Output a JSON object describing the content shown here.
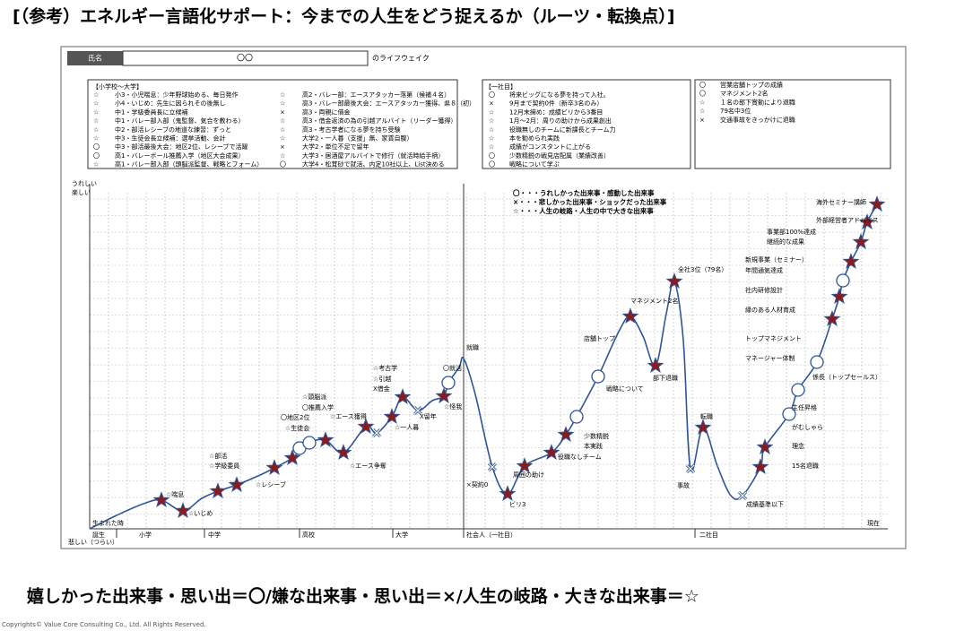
{
  "title": "[（参考）エネルギー言語化サポート：今までの人生をどう捉えるか（ルーツ・転換点）]",
  "name_row": {
    "label": "氏名",
    "value": "〇〇",
    "suffix": "のライフウェイク"
  },
  "boxes": [
    {
      "header": "【小学校～大学】",
      "items": [
        {
          "mark": "☆",
          "text": "小3・小児喘息：少年野球始める、毎日発作"
        },
        {
          "mark": "☆",
          "text": "小4・いじめ：先生に因られその後無し"
        },
        {
          "mark": "☆",
          "text": "中1・学級委員長に立候補"
        },
        {
          "mark": "☆",
          "text": "中1・バレー部入部（鬼監督、気合を教わる）"
        },
        {
          "mark": "☆",
          "text": "中2・部活レシーブの地道な練習：ずっと"
        },
        {
          "mark": "☆",
          "text": "中3・生徒会長立候補：選挙活動、会計"
        },
        {
          "mark": "〇",
          "text": "中3・部活最後大会：地区2位、レシーブで活躍"
        },
        {
          "mark": "〇",
          "text": "高1・バレーボール推薦入学（地区大会成果）"
        },
        {
          "mark": "☆",
          "text": "高1・バレー部入部（頭脳派監督、戦略とフォーム）"
        },
        {
          "mark": "☆",
          "text": "高2・バレー部：エースアタッカー落第（候補４名）"
        },
        {
          "mark": "☆",
          "text": "高3・バレー部最後大会：エースアタッカー獲得、県８（初）"
        },
        {
          "mark": "×",
          "text": "高3・両親に借金"
        },
        {
          "mark": "☆",
          "text": "高3・借金返済の為の引越アルバイト（リーダー獲得）"
        },
        {
          "mark": "☆",
          "text": "高3・考古学者になる夢を持ち受験"
        },
        {
          "mark": "☆",
          "text": "大学2・一人暮（支援」無、家賃自腹）"
        },
        {
          "mark": "×",
          "text": "大学2・単位不足で留年"
        },
        {
          "mark": "☆",
          "text": "大学3・居酒屋アルバイトで修行（就活時給手柄）"
        },
        {
          "mark": "〇",
          "text": "大学4・松茸砂で就活、内定10社以上、List決める"
        }
      ]
    },
    {
      "header": "【一社目】",
      "items": [
        {
          "mark": "〇",
          "text": "将来ビッグになる夢を持って入社。"
        },
        {
          "mark": "×",
          "text": "9月まで契約0件（新卒3名のみ）"
        },
        {
          "mark": "☆",
          "text": "12月末締め：成績ビリから3番目"
        },
        {
          "mark": "☆",
          "text": "1月～2月：周りの助けから成果創出"
        },
        {
          "mark": "☆",
          "text": "役職無しのチームに新課長とチーム力"
        },
        {
          "mark": "☆",
          "text": "本を勧められ実践"
        },
        {
          "mark": "☆",
          "text": "成績がコンスタントに上がる"
        },
        {
          "mark": "〇",
          "text": "少数精鋭の戦見店配属（業績改善）"
        },
        {
          "mark": "〇",
          "text": "戦略について学ぶ"
        }
      ]
    },
    {
      "items": [
        {
          "mark": "〇",
          "text": "営業店舗トップの成績"
        },
        {
          "mark": "〇",
          "text": "マネジメント2名"
        },
        {
          "mark": "☆",
          "text": "１名の部下賞勤により退職"
        },
        {
          "mark": "☆",
          "text": "79名中3位"
        },
        {
          "mark": "×",
          "text": "交通事故をきっかけに退職"
        }
      ]
    }
  ],
  "lifeline": {
    "y_top_label": [
      "うれしい",
      "楽しい"
    ],
    "y_bottom_label": "悲しい（つらい）",
    "birth_note": "生まれた時",
    "x_labels": [
      "誕生",
      "小学",
      "中学",
      "高校",
      "大学",
      "社会人（一社目）",
      "二社目",
      "現在"
    ],
    "legend": [
      "〇・・・うれしかった出来事・感動した出来事",
      "×・・・悲しかった出来事・ショックだった出来事",
      "☆・・・人生の岐路・人生の中で大きな出来事"
    ],
    "annotations": [
      "☆喘息",
      "☆いじめ",
      "☆部活",
      "☆学級委員",
      "☆レシーブ",
      "〇地区2位",
      "☆生徒会",
      "☆頭脳派",
      "〇推薦入学",
      "☆エース獲得",
      "☆エース争奪",
      "☆考古学",
      "☆引越",
      "X借金",
      "☆一人暮",
      "X留年",
      "〇就活",
      "☆怪我",
      "就職",
      "×契約0",
      "周囲の助け",
      "ビリ3",
      "少数精鋭",
      "本実践",
      "役職なしチーム",
      "戦略について",
      "店舗トップ",
      "マネジメント2名",
      "部下退職",
      "全社3位（79名）",
      "転職",
      "事故",
      "成績基準以下",
      "15名退職",
      "理念",
      "がむしゃら",
      "主任昇格",
      "係長（トップセールス）",
      "マネージャー体制",
      "トップマネジメント",
      "縁のある人材育成",
      "社内研修設計",
      "新規事業（セミナー）",
      "年間通気達成",
      "継続的な成果",
      "事業部100%達成",
      "外部経営者アドバイス",
      "海外セミナー講師"
    ]
  },
  "footer": {
    "caption": "嬉しかった出来事・思い出＝〇/嫌な出来事・思い出＝×/人生の岐路・大きな出来事＝☆",
    "copyright": "Copyrights© Value Core Consulting Co., Ltd. All Rights Reserved."
  }
}
